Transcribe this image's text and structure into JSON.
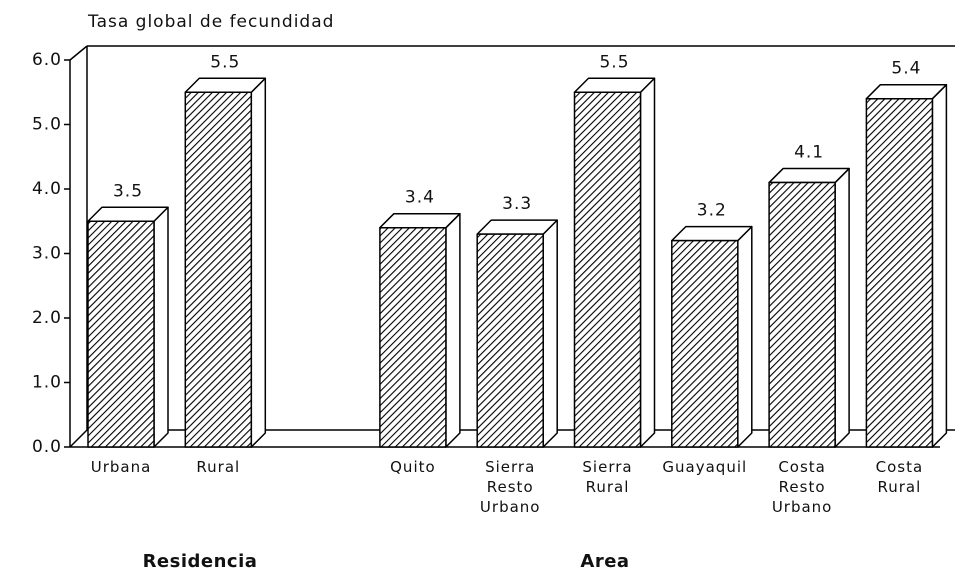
{
  "chart_data": {
    "type": "bar3d",
    "y_axis_label": "Tasa global de fecundidad",
    "categories": [
      [
        "Urbana"
      ],
      [
        "Rural"
      ],
      null,
      [
        "Quito"
      ],
      [
        "Sierra",
        "Resto",
        "Urbano"
      ],
      [
        "Sierra",
        "Rural"
      ],
      [
        "Guayaquil"
      ],
      [
        "Costa",
        "Resto",
        "Urbano"
      ],
      [
        "Costa",
        "Rural"
      ]
    ],
    "values": [
      3.5,
      5.5,
      null,
      3.4,
      3.3,
      5.5,
      3.2,
      4.1,
      5.4
    ],
    "group_labels": [
      "Residencia",
      "Area"
    ],
    "color": "#000000",
    "ylim": [
      0,
      6
    ],
    "yticks": [
      {
        "value": 0,
        "label": "0.0"
      },
      {
        "value": 1,
        "label": "1.0"
      },
      {
        "value": 2,
        "label": "2.0"
      },
      {
        "value": 3,
        "label": "3.0"
      },
      {
        "value": 4,
        "label": "4.0"
      },
      {
        "value": 5,
        "label": "5.0"
      },
      {
        "value": 6,
        "label": "6.0"
      }
    ],
    "grid": false
  }
}
